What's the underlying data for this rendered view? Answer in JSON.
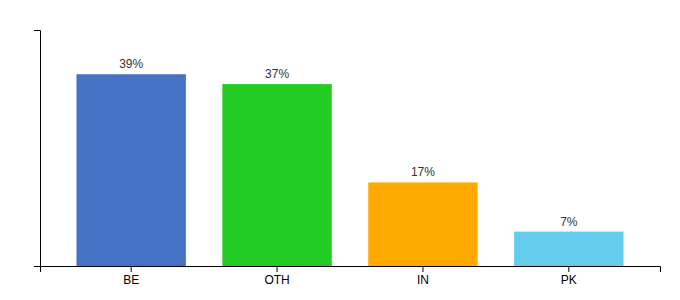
{
  "chart_data": {
    "type": "bar",
    "categories": [
      "BE",
      "OTH",
      "IN",
      "PK"
    ],
    "values": [
      39,
      37,
      17,
      7
    ],
    "value_labels": [
      "39%",
      "37%",
      "17%",
      "7%"
    ],
    "colors": [
      "#4472c4",
      "#22cc22",
      "#ffaa00",
      "#66ccee"
    ],
    "ylim": [
      0,
      48
    ],
    "data_labels": true,
    "tick_labels": "x",
    "grid": false
  }
}
